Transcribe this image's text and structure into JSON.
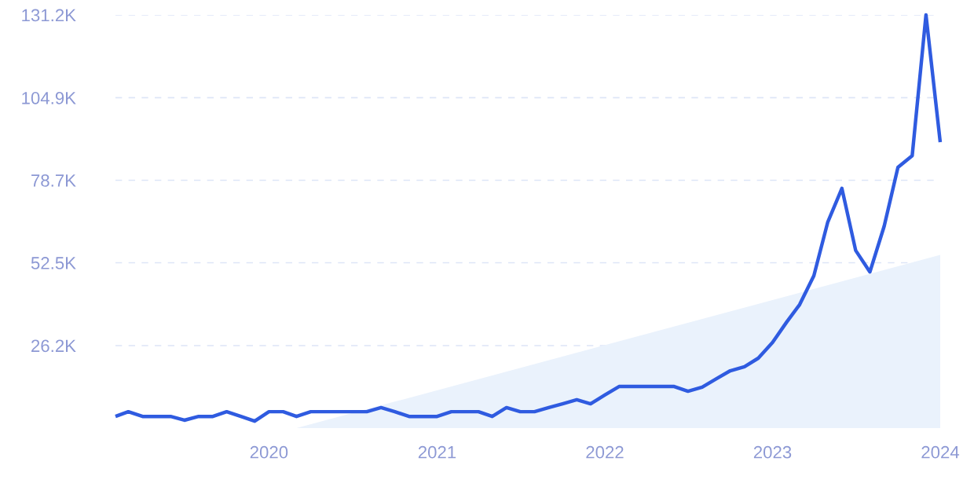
{
  "chart_data": {
    "type": "line",
    "x": [
      "2019-02",
      "2019-03",
      "2019-04",
      "2019-05",
      "2019-06",
      "2019-07",
      "2019-08",
      "2019-09",
      "2019-10",
      "2019-11",
      "2019-12",
      "2020-01",
      "2020-02",
      "2020-03",
      "2020-04",
      "2020-05",
      "2020-06",
      "2020-07",
      "2020-08",
      "2020-09",
      "2020-10",
      "2020-11",
      "2020-12",
      "2021-01",
      "2021-02",
      "2021-03",
      "2021-04",
      "2021-05",
      "2021-06",
      "2021-07",
      "2021-08",
      "2021-09",
      "2021-10",
      "2021-11",
      "2021-12",
      "2022-01",
      "2022-02",
      "2022-03",
      "2022-04",
      "2022-05",
      "2022-06",
      "2022-07",
      "2022-08",
      "2022-09",
      "2022-10",
      "2022-11",
      "2022-12",
      "2023-01",
      "2023-02",
      "2023-03",
      "2023-04",
      "2023-05",
      "2023-06",
      "2023-07",
      "2023-08",
      "2023-09",
      "2023-10",
      "2023-11",
      "2023-12",
      "2024-01"
    ],
    "series": [
      {
        "type": "area",
        "color": "#eaf2fc",
        "x": [
          "2020-03",
          "2024-01"
        ],
        "values": [
          0,
          55000
        ]
      },
      {
        "color": "#2f5be0",
        "values": [
          3700,
          5200,
          3700,
          3700,
          3700,
          2500,
          3700,
          3700,
          5200,
          3700,
          2200,
          5200,
          5200,
          3700,
          5200,
          5200,
          5200,
          5200,
          5200,
          6500,
          5200,
          3700,
          3700,
          3700,
          5200,
          5200,
          5200,
          3700,
          6500,
          5200,
          5200,
          6500,
          7700,
          9000,
          7700,
          10500,
          13200,
          13200,
          13200,
          13200,
          13200,
          11700,
          13000,
          15700,
          18200,
          19500,
          22200,
          27200,
          33700,
          39200,
          48400,
          65300,
          76100,
          56400,
          49600,
          64100,
          82800,
          86500,
          131200,
          90800
        ]
      }
    ],
    "xlim": [
      "2019-02",
      "2024-01"
    ],
    "xticks": [
      {
        "value": "2020-01",
        "label": "2020"
      },
      {
        "value": "2021-01",
        "label": "2021"
      },
      {
        "value": "2022-01",
        "label": "2022"
      },
      {
        "value": "2023-01",
        "label": "2023"
      },
      {
        "value": "2024-01",
        "label": "2024"
      }
    ],
    "ylim": [
      0,
      131200
    ],
    "yticks": [
      {
        "value": 26200,
        "label": "26.2K"
      },
      {
        "value": 52500,
        "label": "52.5K"
      },
      {
        "value": 78700,
        "label": "78.7K"
      },
      {
        "value": 104900,
        "label": "104.9K"
      },
      {
        "value": 131200,
        "label": "131.2K"
      }
    ],
    "grid": "y",
    "marker": "none",
    "line_style": "solid"
  }
}
